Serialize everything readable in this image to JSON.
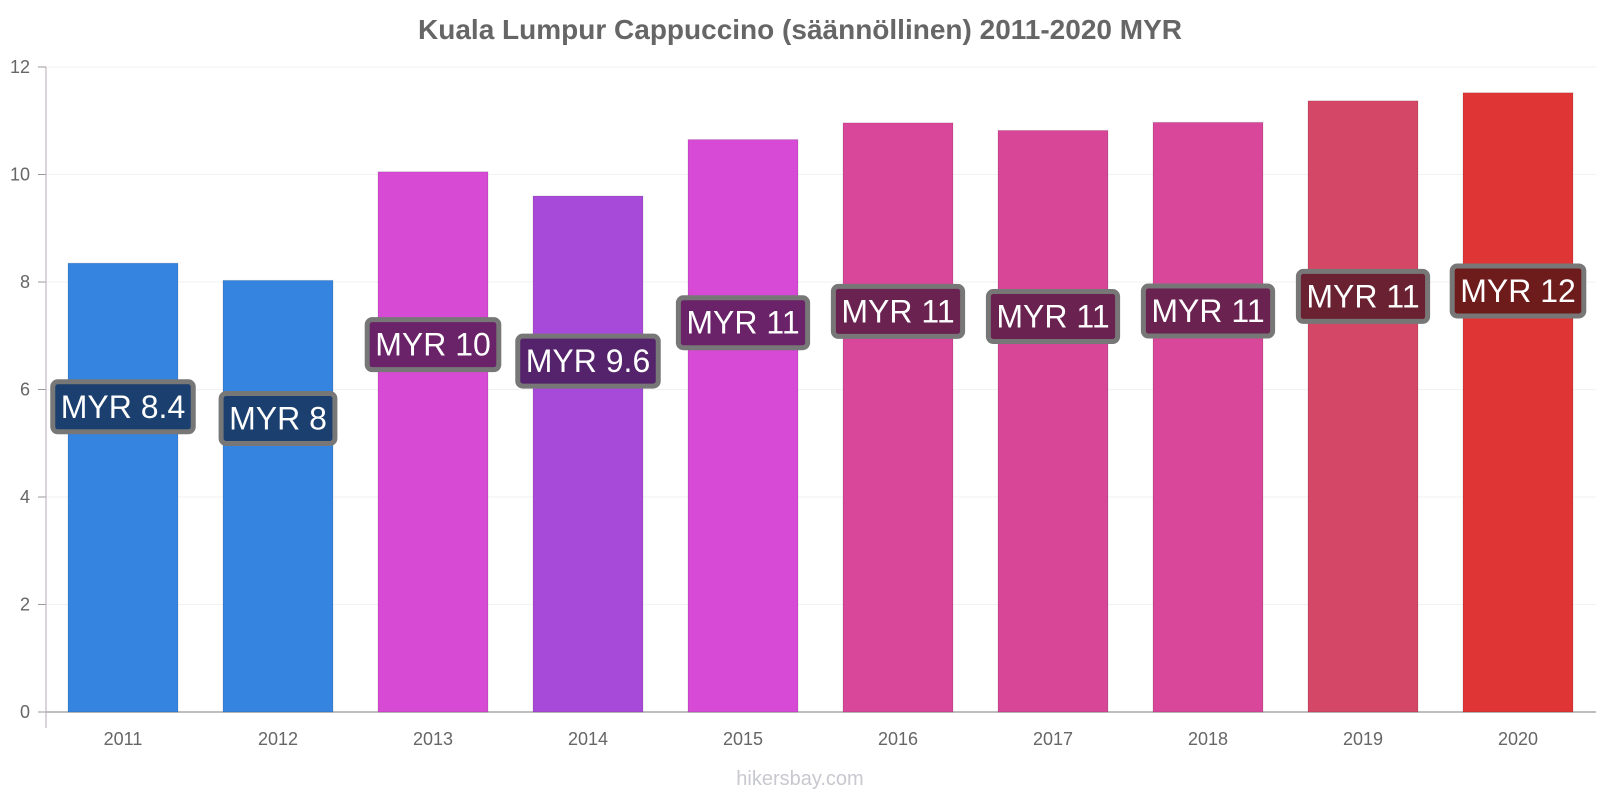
{
  "chart_data": {
    "type": "bar",
    "title": "Kuala Lumpur Cappuccino (säännöllinen) 2011-2020 MYR",
    "xlabel": "",
    "ylabel": "",
    "categories": [
      "2011",
      "2012",
      "2013",
      "2014",
      "2015",
      "2016",
      "2017",
      "2018",
      "2019",
      "2020"
    ],
    "values": [
      8.35,
      8.03,
      10.05,
      9.6,
      10.65,
      10.96,
      10.82,
      10.97,
      11.37,
      11.52
    ],
    "data_labels": [
      "MYR 8.4",
      "MYR 8",
      "MYR 10",
      "MYR 9.6",
      "MYR 11",
      "MYR 11",
      "MYR 11",
      "MYR 11",
      "MYR 11",
      "MYR 12"
    ],
    "bar_colors": [
      "#3584e0",
      "#3584e0",
      "#d74ad4",
      "#a84ad9",
      "#d64ad6",
      "#d84799",
      "#d84797",
      "#d84799",
      "#d54767",
      "#e03535"
    ],
    "label_bg_colors": [
      "#1b3f6e",
      "#1b3f6e",
      "#6a2268",
      "#54236b",
      "#6a2268",
      "#6a2250",
      "#6a2250",
      "#6a2250",
      "#6a2233",
      "#6e1b1b"
    ],
    "ylim": [
      0,
      12
    ],
    "yticks": [
      "0",
      "2",
      "4",
      "6",
      "8",
      "10",
      "12"
    ],
    "grid": true,
    "legend": "none"
  },
  "watermark": "hikersbay.com"
}
